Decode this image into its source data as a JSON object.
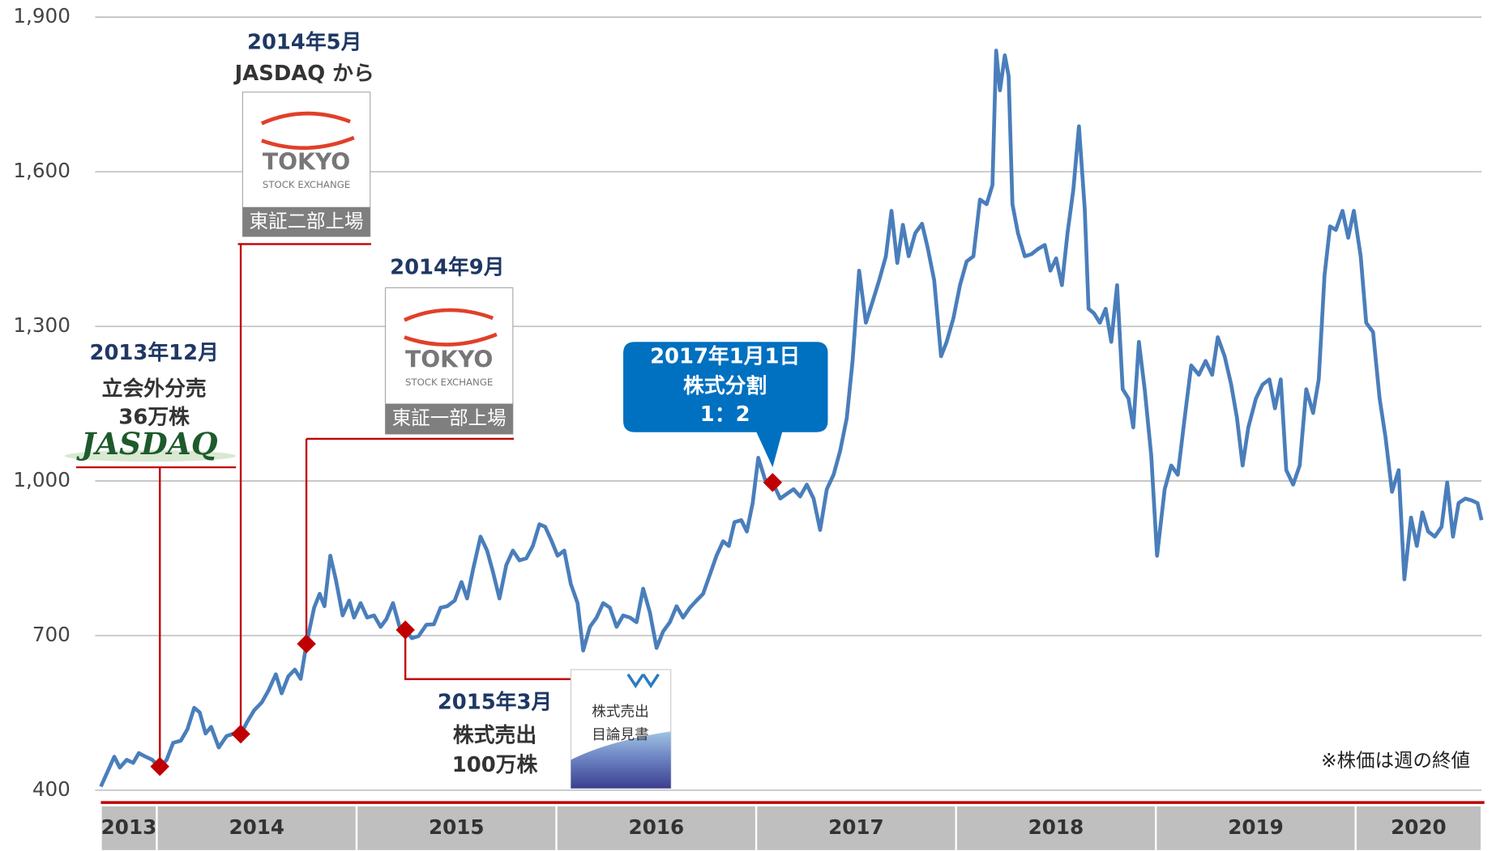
{
  "chart_data": {
    "type": "line",
    "color": "#4a7ebb",
    "ylim": [
      400,
      1900
    ],
    "yticks": [
      400,
      700,
      {
        "value": 1000,
        "label": "1,000"
      },
      {
        "value": 1300,
        "label": "1,300"
      },
      {
        "value": 1600,
        "label": "1,600"
      },
      {
        "value": 1900,
        "label": "1,900"
      }
    ],
    "grid": true,
    "xlim": [
      2013.72,
      2020.63
    ],
    "categories": [
      "2013",
      "2014",
      "2015",
      "2016",
      "2017",
      "2018",
      "2019",
      "2020"
    ],
    "x": [
      2013.72,
      2013.787,
      2013.815,
      2013.849,
      2013.882,
      2013.91,
      2013.939,
      2013.977,
      2014.015,
      2014.049,
      2014.082,
      2014.12,
      2014.153,
      2014.187,
      2014.215,
      2014.244,
      2014.272,
      2014.31,
      2014.349,
      2014.387,
      2014.42,
      2014.453,
      2014.487,
      2014.525,
      2014.558,
      2014.596,
      2014.625,
      2014.658,
      2014.691,
      2014.72,
      2014.749,
      2014.787,
      2014.815,
      2014.839,
      2014.868,
      2014.896,
      2014.93,
      2014.963,
      2014.987,
      2015.02,
      2015.053,
      2015.087,
      2015.12,
      2015.149,
      2015.182,
      2015.215,
      2015.244,
      2015.277,
      2015.31,
      2015.349,
      2015.387,
      2015.42,
      2015.453,
      2015.491,
      2015.525,
      2015.553,
      2015.582,
      2015.62,
      2015.653,
      2015.682,
      2015.715,
      2015.749,
      2015.782,
      2015.815,
      2015.849,
      2015.882,
      2015.915,
      2015.944,
      2015.972,
      2016.006,
      2016.039,
      2016.072,
      2016.106,
      2016.134,
      2016.168,
      2016.201,
      2016.234,
      2016.268,
      2016.301,
      2016.334,
      2016.368,
      2016.401,
      2016.434,
      2016.468,
      2016.501,
      2016.534,
      2016.568,
      2016.601,
      2016.634,
      2016.668,
      2016.701,
      2016.734,
      2016.768,
      2016.801,
      2016.834,
      2016.863,
      2016.891,
      2016.925,
      2016.953,
      2016.982,
      2017.01,
      2017.044,
      2017.082,
      2017.12,
      2017.153,
      2017.187,
      2017.22,
      2017.253,
      2017.287,
      2017.32,
      2017.353,
      2017.387,
      2017.42,
      2017.453,
      2017.482,
      2017.515,
      2017.549,
      2017.582,
      2017.615,
      2017.649,
      2017.677,
      2017.706,
      2017.734,
      2017.763,
      2017.796,
      2017.83,
      2017.858,
      2017.891,
      2017.925,
      2017.953,
      2017.987,
      2018.02,
      2018.053,
      2018.087,
      2018.12,
      2018.153,
      2018.182,
      2018.201,
      2018.22,
      2018.244,
      2018.263,
      2018.282,
      2018.31,
      2018.344,
      2018.377,
      2018.41,
      2018.444,
      2018.472,
      2018.501,
      2018.53,
      2018.558,
      2018.587,
      2018.615,
      2018.644,
      2018.663,
      2018.691,
      2018.72,
      2018.749,
      2018.777,
      2018.806,
      2018.834,
      2018.863,
      2018.887,
      2018.915,
      2018.944,
      2018.977,
      2019.006,
      2019.044,
      2019.077,
      2019.11,
      2019.144,
      2019.177,
      2019.215,
      2019.249,
      2019.282,
      2019.31,
      2019.344,
      2019.377,
      2019.406,
      2019.434,
      2019.463,
      2019.501,
      2019.534,
      2019.568,
      2019.596,
      2019.625,
      2019.653,
      2019.687,
      2019.72,
      2019.753,
      2019.787,
      2019.815,
      2019.844,
      2019.872,
      2019.901,
      2019.934,
      2019.963,
      2019.991,
      2020.025,
      2020.053,
      2020.087,
      2020.12,
      2020.149,
      2020.182,
      2020.215,
      2020.244,
      2020.277,
      2020.306,
      2020.334,
      2020.363,
      2020.396,
      2020.43,
      2020.458,
      2020.487,
      2020.515,
      2020.549,
      2020.582,
      2020.61,
      2020.63
    ],
    "values": [
      407,
      465,
      444,
      459,
      453,
      472,
      466,
      459,
      444,
      459,
      492,
      496,
      518,
      560,
      551,
      510,
      523,
      483,
      505,
      510,
      508,
      533,
      555,
      570,
      593,
      625,
      588,
      621,
      634,
      616,
      684,
      754,
      781,
      757,
      855,
      809,
      739,
      768,
      735,
      763,
      735,
      739,
      717,
      732,
      763,
      717,
      711,
      695,
      699,
      721,
      722,
      754,
      757,
      768,
      804,
      772,
      827,
      892,
      865,
      824,
      772,
      837,
      865,
      846,
      850,
      874,
      916,
      911,
      887,
      855,
      865,
      800,
      763,
      671,
      717,
      735,
      763,
      754,
      717,
      739,
      735,
      726,
      791,
      745,
      676,
      708,
      726,
      757,
      735,
      754,
      768,
      781,
      818,
      855,
      883,
      874,
      920,
      924,
      902,
      957,
      1045,
      1003,
      997,
      966,
      975,
      984,
      970,
      993,
      966,
      905,
      984,
      1012,
      1058,
      1122,
      1233,
      1408,
      1307,
      1348,
      1389,
      1436,
      1524,
      1423,
      1497,
      1436,
      1481,
      1499,
      1453,
      1389,
      1242,
      1270,
      1316,
      1380,
      1426,
      1436,
      1546,
      1537,
      1574,
      1835,
      1758,
      1826,
      1786,
      1537,
      1481,
      1436,
      1440,
      1450,
      1458,
      1408,
      1432,
      1380,
      1481,
      1565,
      1688,
      1528,
      1334,
      1325,
      1307,
      1334,
      1270,
      1380,
      1178,
      1160,
      1104,
      1270,
      1178,
      1049,
      855,
      984,
      1030,
      1012,
      1122,
      1224,
      1206,
      1233,
      1206,
      1279,
      1242,
      1187,
      1122,
      1030,
      1104,
      1160,
      1187,
      1197,
      1141,
      1197,
      1021,
      993,
      1030,
      1178,
      1132,
      1197,
      1399,
      1494,
      1487,
      1524,
      1472,
      1524,
      1436,
      1307,
      1289,
      1160,
      1086,
      979,
      1021,
      809,
      929,
      874,
      939,
      902,
      892,
      911,
      997,
      892,
      957,
      966,
      962,
      957,
      924
    ],
    "note": "※株価は週の終値",
    "annotations": [
      {
        "x": 2014.015,
        "value": 446,
        "date": "2013年12月",
        "lines": [
          "立会外分売",
          "36万株"
        ],
        "logo": "JASDAQ"
      },
      {
        "x": 2014.42,
        "value": 509,
        "date": "2014年5月",
        "lines": [
          "JASDAQ から"
        ],
        "logo": [
          "TOKYO",
          "STOCK EXCHANGE"
        ],
        "caption": "東証二部上場"
      },
      {
        "x": 2014.749,
        "value": 684,
        "date": "2014年9月",
        "logo": [
          "TOKYO",
          "STOCK EXCHANGE"
        ],
        "caption": "東証一部上場"
      },
      {
        "x": 2015.244,
        "value": 711,
        "date": "2015年3月",
        "lines": [
          "株式売出",
          "100万株"
        ],
        "document": [
          "株式売出",
          "目論見書"
        ]
      },
      {
        "x": 2017.082,
        "value": 997,
        "date": "2017年1月1日",
        "lines": [
          "株式分割",
          "1：2"
        ]
      }
    ]
  }
}
